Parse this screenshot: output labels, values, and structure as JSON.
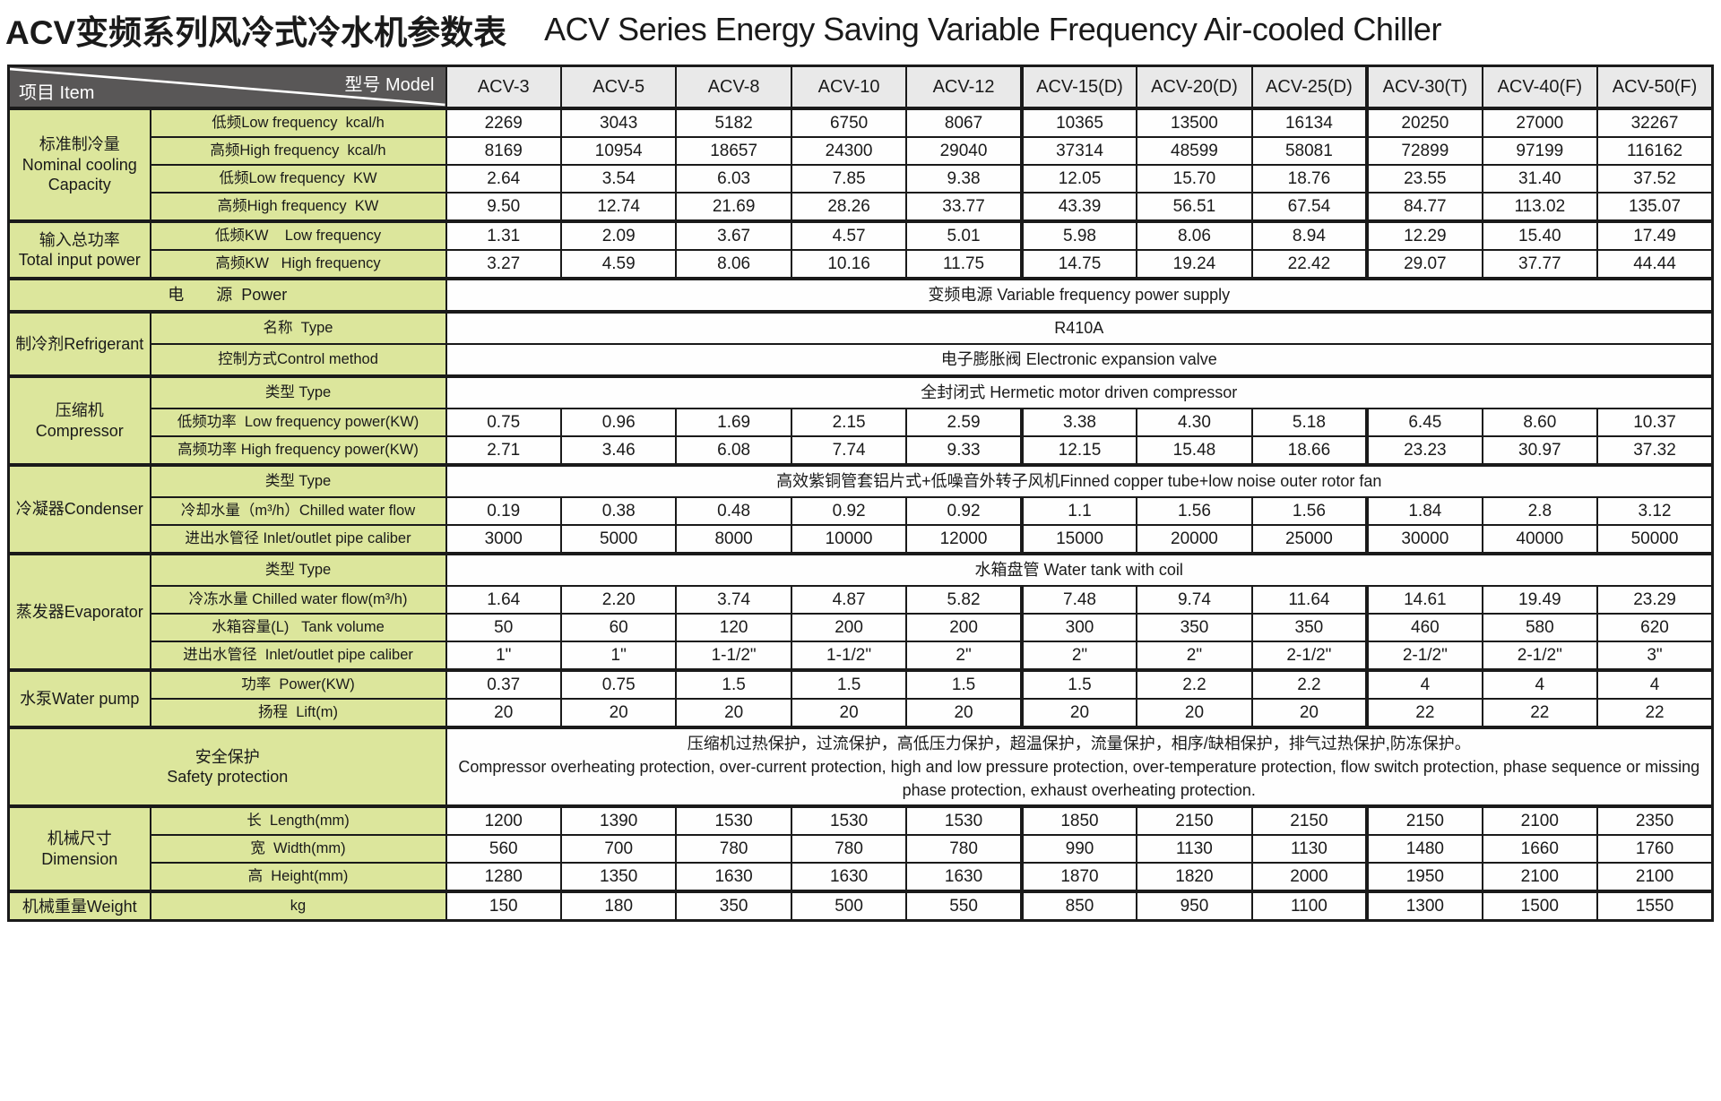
{
  "title": {
    "zh": "ACV变频系列风冷式冷水机参数表",
    "en": "ACV Series Energy Saving Variable Frequency Air-cooled Chiller"
  },
  "colors": {
    "header_dark": "#595757",
    "header_gray": "#e9e9e9",
    "label_green": "#dce69c",
    "cell_white": "#fefefe",
    "border_black": "#1a1a1a"
  },
  "table": {
    "corner": {
      "model_label": "型号  Model",
      "item_label": "项目  Item"
    },
    "models": [
      "ACV-3",
      "ACV-5",
      "ACV-8",
      "ACV-10",
      "ACV-12",
      "ACV-15(D)",
      "ACV-20(D)",
      "ACV-25(D)",
      "ACV-30(T)",
      "ACV-40(F)",
      "ACV-50(F)"
    ],
    "sections": [
      {
        "id": "nominal-cooling-capacity",
        "label": "标准制冷量\nNominal cooling\nCapacity",
        "rows": [
          {
            "label": "低频Low frequency  kcal/h",
            "values": [
              "2269",
              "3043",
              "5182",
              "6750",
              "8067",
              "10365",
              "13500",
              "16134",
              "20250",
              "27000",
              "32267"
            ]
          },
          {
            "label": "高频High frequency  kcal/h",
            "values": [
              "8169",
              "10954",
              "18657",
              "24300",
              "29040",
              "37314",
              "48599",
              "58081",
              "72899",
              "97199",
              "116162"
            ]
          },
          {
            "label": "低频Low frequency  KW",
            "values": [
              "2.64",
              "3.54",
              "6.03",
              "7.85",
              "9.38",
              "12.05",
              "15.70",
              "18.76",
              "23.55",
              "31.40",
              "37.52"
            ]
          },
          {
            "label": "高频High frequency  KW",
            "values": [
              "9.50",
              "12.74",
              "21.69",
              "28.26",
              "33.77",
              "43.39",
              "56.51",
              "67.54",
              "84.77",
              "113.02",
              "135.07"
            ]
          }
        ]
      },
      {
        "id": "total-input-power",
        "label": "输入总功率\nTotal input power",
        "rows": [
          {
            "label": "低频KW    Low frequency",
            "values": [
              "1.31",
              "2.09",
              "3.67",
              "4.57",
              "5.01",
              "5.98",
              "8.06",
              "8.94",
              "12.29",
              "15.40",
              "17.49"
            ]
          },
          {
            "label": "高频KW   High frequency",
            "values": [
              "3.27",
              "4.59",
              "8.06",
              "10.16",
              "11.75",
              "14.75",
              "19.24",
              "22.42",
              "29.07",
              "37.77",
              "44.44"
            ]
          }
        ]
      },
      {
        "id": "power-supply",
        "merged": true,
        "rows": [
          {
            "label": "电　　源  Power",
            "span": "变频电源 Variable frequency power supply"
          }
        ]
      },
      {
        "id": "refrigerant",
        "label": "制冷剂Refrigerant",
        "rows": [
          {
            "label": "名称  Type",
            "span": "R410A"
          },
          {
            "label": "控制方式Control method",
            "span": "电子膨胀阀 Electronic expansion valve"
          }
        ]
      },
      {
        "id": "compressor",
        "label": "压缩机Compressor",
        "rows": [
          {
            "label": "类型 Type",
            "span": "全封闭式 Hermetic motor driven compressor"
          },
          {
            "label": "低频功率  Low frequency power(KW)",
            "values": [
              "0.75",
              "0.96",
              "1.69",
              "2.15",
              "2.59",
              "3.38",
              "4.30",
              "5.18",
              "6.45",
              "8.60",
              "10.37"
            ]
          },
          {
            "label": "高频功率 High frequency power(KW)",
            "values": [
              "2.71",
              "3.46",
              "6.08",
              "7.74",
              "9.33",
              "12.15",
              "15.48",
              "18.66",
              "23.23",
              "30.97",
              "37.32"
            ]
          }
        ]
      },
      {
        "id": "condenser",
        "label": "冷凝器Condenser",
        "rows": [
          {
            "label": "类型 Type",
            "span": "高效紫铜管套铝片式+低噪音外转子风机Finned copper tube+low noise outer rotor fan"
          },
          {
            "label": "冷却水量（m³/h）Chilled water flow",
            "values": [
              "0.19",
              "0.38",
              "0.48",
              "0.92",
              "0.92",
              "1.1",
              "1.56",
              "1.56",
              "1.84",
              "2.8",
              "3.12"
            ]
          },
          {
            "label": "进出水管径 Inlet/outlet pipe caliber",
            "values": [
              "3000",
              "5000",
              "8000",
              "10000",
              "12000",
              "15000",
              "20000",
              "25000",
              "30000",
              "40000",
              "50000"
            ]
          }
        ]
      },
      {
        "id": "evaporator",
        "label": "蒸发器Evaporator",
        "rows": [
          {
            "label": "类型 Type",
            "span": "水箱盘管 Water tank with coil"
          },
          {
            "label": "冷冻水量 Chilled water flow(m³/h)",
            "values": [
              "1.64",
              "2.20",
              "3.74",
              "4.87",
              "5.82",
              "7.48",
              "9.74",
              "11.64",
              "14.61",
              "19.49",
              "23.29"
            ]
          },
          {
            "label": "水箱容量(L)   Tank volume",
            "values": [
              "50",
              "60",
              "120",
              "200",
              "200",
              "300",
              "350",
              "350",
              "460",
              "580",
              "620"
            ]
          },
          {
            "label": "进出水管径  Inlet/outlet pipe caliber",
            "values": [
              "1\"",
              "1\"",
              "1-1/2\"",
              "1-1/2\"",
              "2\"",
              "2\"",
              "2\"",
              "2-1/2\"",
              "2-1/2\"",
              "2-1/2\"",
              "3\""
            ]
          }
        ]
      },
      {
        "id": "water-pump",
        "label": "水泵Water pump",
        "rows": [
          {
            "label": "功率  Power(KW)",
            "values": [
              "0.37",
              "0.75",
              "1.5",
              "1.5",
              "1.5",
              "1.5",
              "2.2",
              "2.2",
              "4",
              "4",
              "4"
            ]
          },
          {
            "label": "扬程  Lift(m)",
            "values": [
              "20",
              "20",
              "20",
              "20",
              "20",
              "20",
              "20",
              "20",
              "22",
              "22",
              "22"
            ]
          }
        ]
      },
      {
        "id": "safety-protection",
        "merged": true,
        "rows": [
          {
            "label": "安全保护\nSafety protection",
            "span": "压缩机过热保护，过流保护，高低压力保护，超温保护，流量保护，相序/缺相保护，排气过热保护,防冻保护。\nCompressor overheating protection, over-current protection, high and low pressure protection, over-temperature protection, flow switch protection, phase sequence or missing phase protection, exhaust overheating protection."
          }
        ]
      },
      {
        "id": "dimension",
        "label": "机械尺寸Dimension",
        "rows": [
          {
            "label": "长  Length(mm)",
            "values": [
              "1200",
              "1390",
              "1530",
              "1530",
              "1530",
              "1850",
              "2150",
              "2150",
              "2150",
              "2100",
              "2350"
            ]
          },
          {
            "label": "宽  Width(mm)",
            "values": [
              "560",
              "700",
              "780",
              "780",
              "780",
              "990",
              "1130",
              "1130",
              "1480",
              "1660",
              "1760"
            ]
          },
          {
            "label": "高  Height(mm)",
            "values": [
              "1280",
              "1350",
              "1630",
              "1630",
              "1630",
              "1870",
              "1820",
              "2000",
              "1950",
              "2100",
              "2100"
            ]
          }
        ]
      },
      {
        "id": "weight",
        "label": "机械重量Weight",
        "rows": [
          {
            "label": "kg",
            "values": [
              "150",
              "180",
              "350",
              "500",
              "550",
              "850",
              "950",
              "1100",
              "1300",
              "1500",
              "1550"
            ]
          }
        ]
      }
    ]
  }
}
